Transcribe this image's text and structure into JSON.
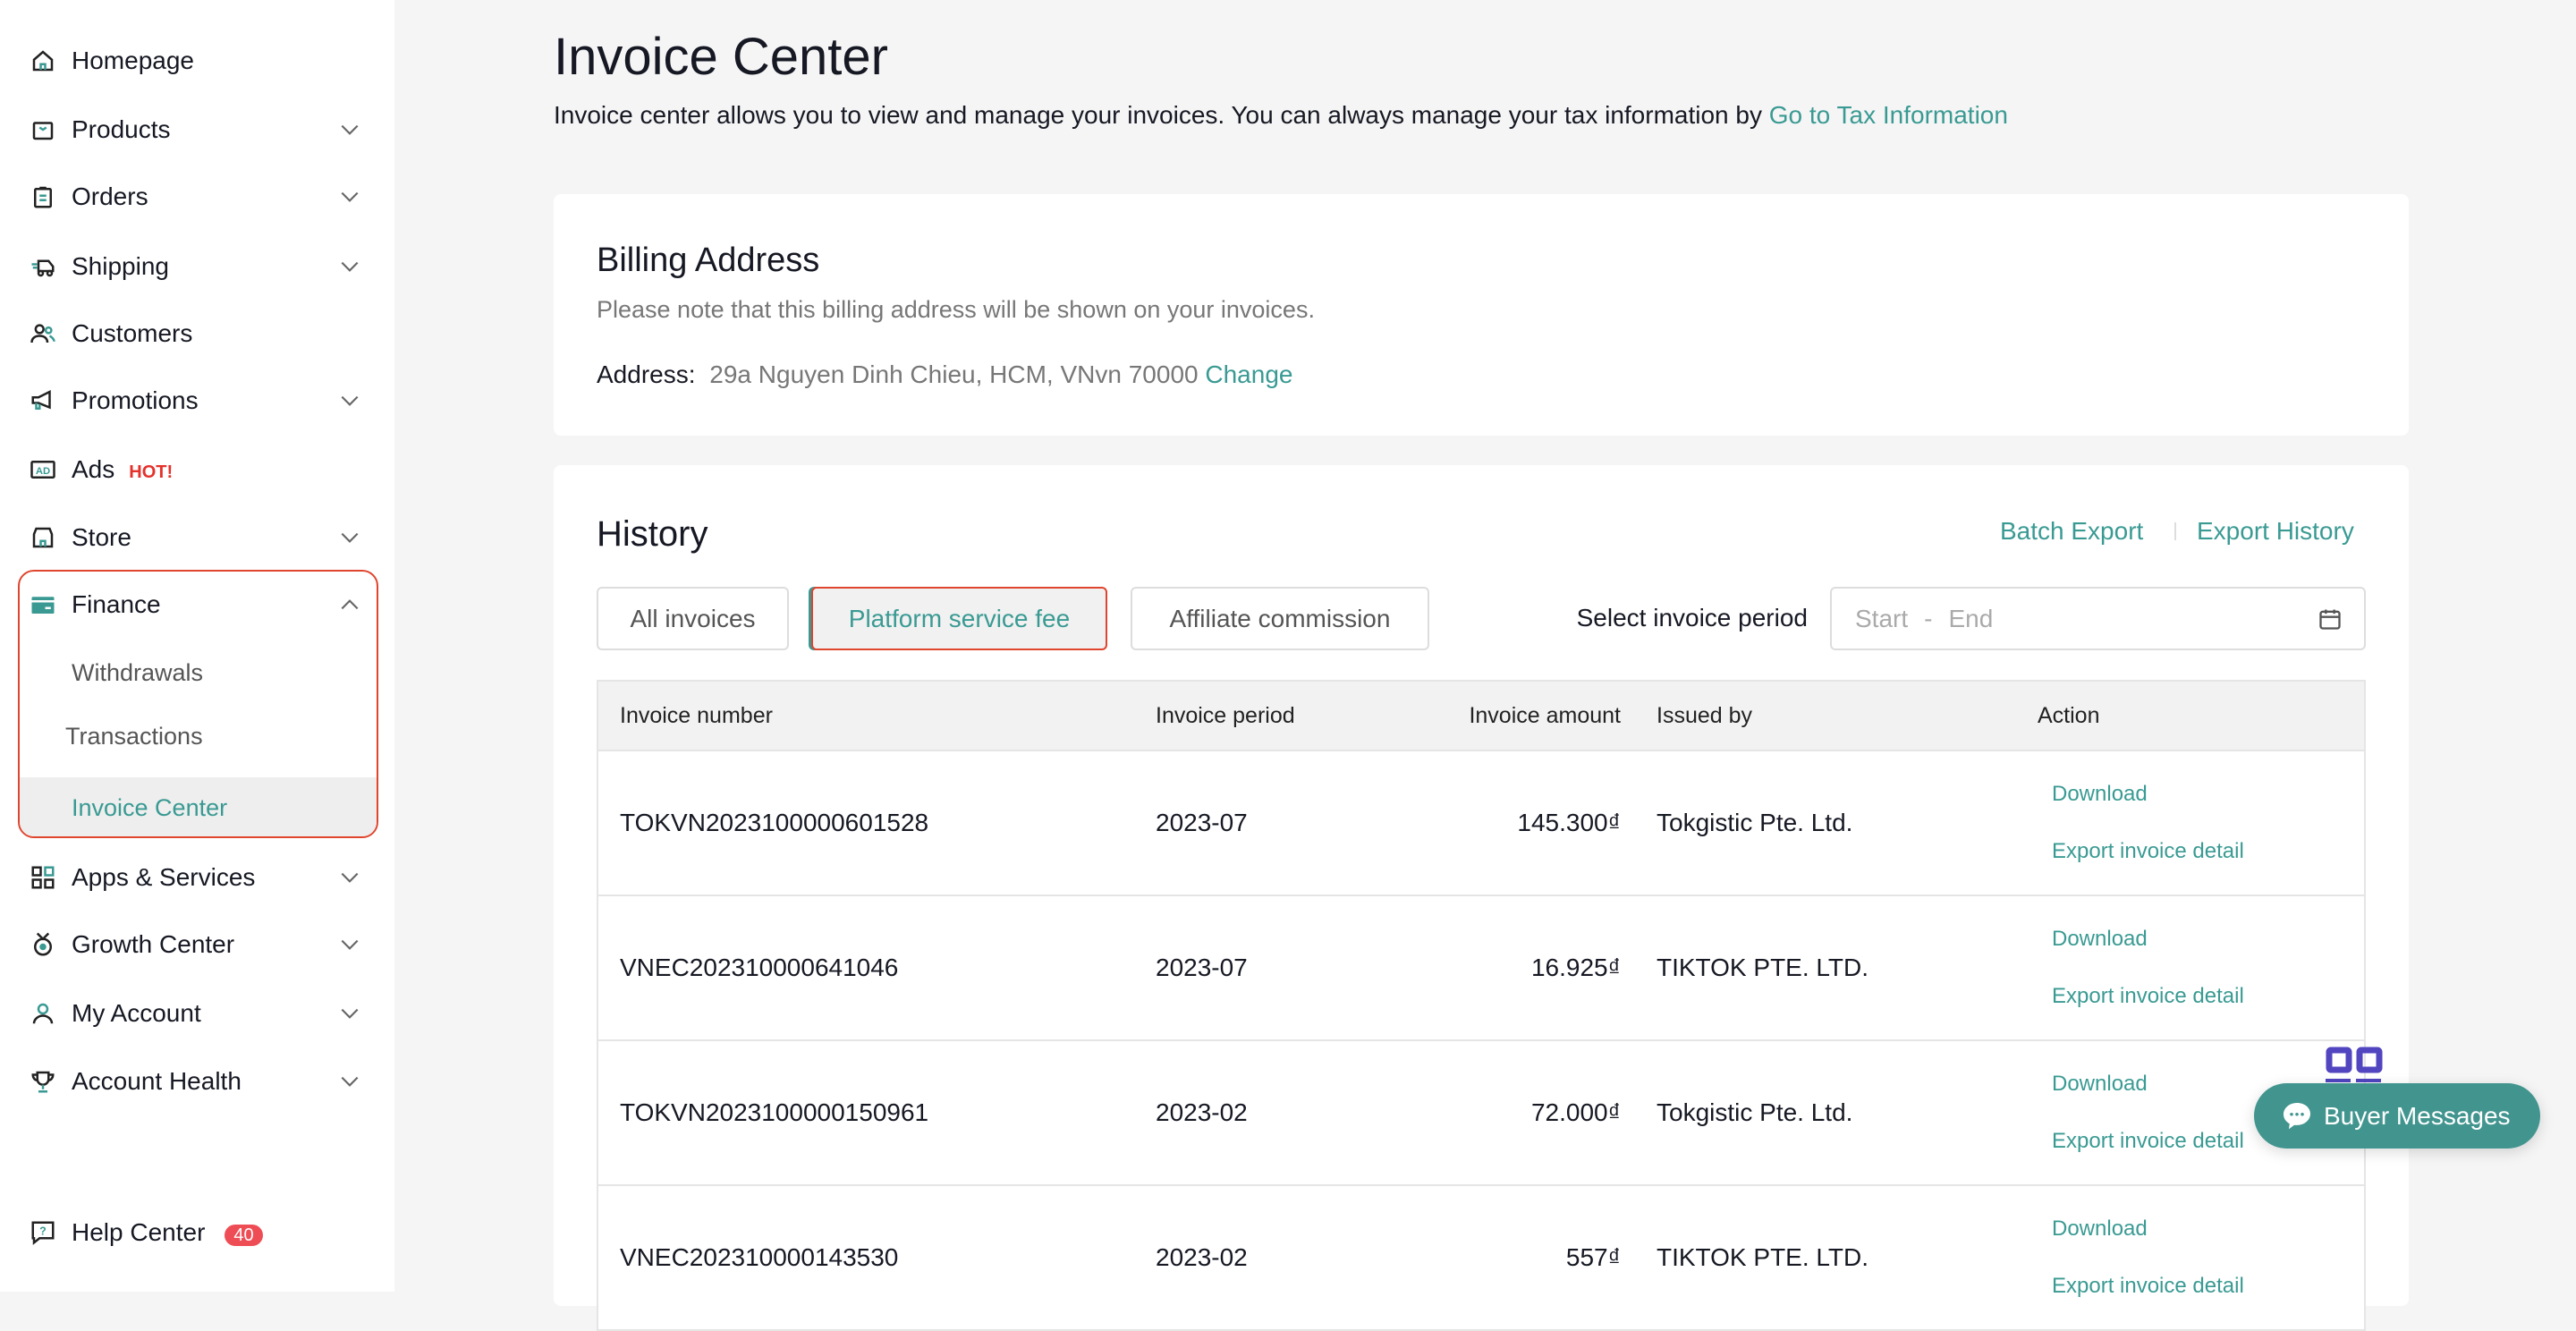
{
  "sidebar": {
    "items": [
      {
        "label": "Homepage",
        "icon": "home-icon",
        "chevron": false
      },
      {
        "label": "Products",
        "icon": "bag-icon",
        "chevron": true
      },
      {
        "label": "Orders",
        "icon": "clipboard-icon",
        "chevron": true
      },
      {
        "label": "Shipping",
        "icon": "truck-icon",
        "chevron": true
      },
      {
        "label": "Customers",
        "icon": "users-icon",
        "chevron": false
      },
      {
        "label": "Promotions",
        "icon": "megaphone-icon",
        "chevron": true
      },
      {
        "label": "Ads",
        "icon": "ad-icon",
        "chevron": false,
        "badge": "HOT!"
      },
      {
        "label": "Store",
        "icon": "store-icon",
        "chevron": true
      },
      {
        "label": "Finance",
        "icon": "card-icon",
        "expanded": true
      },
      {
        "label": "Apps & Services",
        "icon": "apps-icon",
        "chevron": true
      },
      {
        "label": "Growth Center",
        "icon": "medal-icon",
        "chevron": true
      },
      {
        "label": "My Account",
        "icon": "user-icon",
        "chevron": true
      },
      {
        "label": "Account Health",
        "icon": "trophy-icon",
        "chevron": true
      },
      {
        "label": "Help Center",
        "icon": "help-icon",
        "count": "40"
      }
    ],
    "finance_sub": [
      "Withdrawals",
      "Transactions",
      "Invoice Center"
    ]
  },
  "header": {
    "title": "Invoice Center",
    "description": "Invoice center allows you to view and manage your invoices. You can always manage your tax information by ",
    "tax_link": "Go to Tax Information"
  },
  "billing": {
    "title": "Billing Address",
    "note": "Please note that this billing address will be shown on your invoices.",
    "address_label": "Address:",
    "address": "29a Nguyen Dinh Chieu, HCM, VNvn 70000",
    "change": "Change"
  },
  "history": {
    "title": "History",
    "batch_export": "Batch Export",
    "export_history": "Export History",
    "tabs": [
      "All invoices",
      "Platform service fee",
      "Affiliate commission"
    ],
    "active_tab": "Platform service fee",
    "period_label": "Select invoice period",
    "start_placeholder": "Start",
    "sep": "-",
    "end_placeholder": "End",
    "columns": [
      "Invoice number",
      "Invoice period",
      "Invoice amount",
      "Issued by",
      "Action"
    ],
    "rows": [
      {
        "number": "TOKVN2023100000601528",
        "period": "2023-07",
        "amount": "145.300₫",
        "issuer": "Tokgistic Pte. Ltd."
      },
      {
        "number": "VNEC202310000641046",
        "period": "2023-07",
        "amount": "16.925₫",
        "issuer": "TIKTOK PTE. LTD."
      },
      {
        "number": "TOKVN2023100000150961",
        "period": "2023-02",
        "amount": "72.000₫",
        "issuer": "Tokgistic Pte. Ltd."
      },
      {
        "number": "VNEC202310000143530",
        "period": "2023-02",
        "amount": "557₫",
        "issuer": "TIKTOK PTE. LTD."
      }
    ],
    "download": "Download",
    "export_detail": "Export invoice detail"
  },
  "chat": {
    "label": "Buyer Messages"
  },
  "colors": {
    "accent": "#3a9a93",
    "highlight": "#e0452e",
    "chat": "#42958f"
  }
}
